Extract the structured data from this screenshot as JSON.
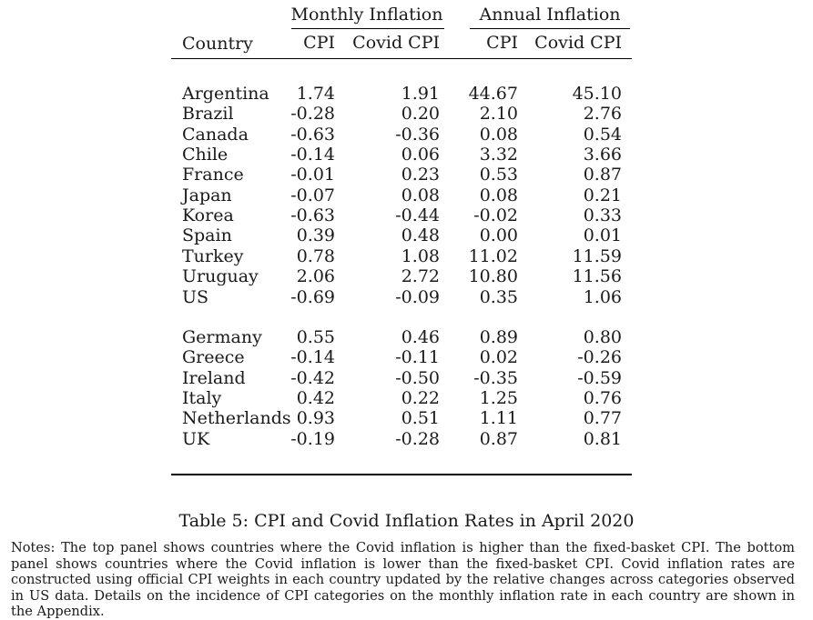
{
  "table": {
    "group_headers": {
      "monthly": "Monthly Inflation",
      "annual": "Annual Inflation"
    },
    "column_headers": [
      "Country",
      "CPI",
      "Covid CPI",
      "CPI",
      "Covid CPI"
    ],
    "panels": [
      {
        "rows": [
          {
            "country": "Argentina",
            "m_cpi": "1.74",
            "m_covid": "1.91",
            "a_cpi": "44.67",
            "a_covid": "45.10"
          },
          {
            "country": "Brazil",
            "m_cpi": "-0.28",
            "m_covid": "0.20",
            "a_cpi": "2.10",
            "a_covid": "2.76"
          },
          {
            "country": "Canada",
            "m_cpi": "-0.63",
            "m_covid": "-0.36",
            "a_cpi": "0.08",
            "a_covid": "0.54"
          },
          {
            "country": "Chile",
            "m_cpi": "-0.14",
            "m_covid": "0.06",
            "a_cpi": "3.32",
            "a_covid": "3.66"
          },
          {
            "country": "France",
            "m_cpi": "-0.01",
            "m_covid": "0.23",
            "a_cpi": "0.53",
            "a_covid": "0.87"
          },
          {
            "country": "Japan",
            "m_cpi": "-0.07",
            "m_covid": "0.08",
            "a_cpi": "0.08",
            "a_covid": "0.21"
          },
          {
            "country": "Korea",
            "m_cpi": "-0.63",
            "m_covid": "-0.44",
            "a_cpi": "-0.02",
            "a_covid": "0.33"
          },
          {
            "country": "Spain",
            "m_cpi": "0.39",
            "m_covid": "0.48",
            "a_cpi": "0.00",
            "a_covid": "0.01"
          },
          {
            "country": "Turkey",
            "m_cpi": "0.78",
            "m_covid": "1.08",
            "a_cpi": "11.02",
            "a_covid": "11.59"
          },
          {
            "country": "Uruguay",
            "m_cpi": "2.06",
            "m_covid": "2.72",
            "a_cpi": "10.80",
            "a_covid": "11.56"
          },
          {
            "country": "US",
            "m_cpi": "-0.69",
            "m_covid": "-0.09",
            "a_cpi": "0.35",
            "a_covid": "1.06"
          }
        ]
      },
      {
        "rows": [
          {
            "country": "Germany",
            "m_cpi": "0.55",
            "m_covid": "0.46",
            "a_cpi": "0.89",
            "a_covid": "0.80"
          },
          {
            "country": "Greece",
            "m_cpi": "-0.14",
            "m_covid": "-0.11",
            "a_cpi": "0.02",
            "a_covid": "-0.26"
          },
          {
            "country": "Ireland",
            "m_cpi": "-0.42",
            "m_covid": "-0.50",
            "a_cpi": "-0.35",
            "a_covid": "-0.59"
          },
          {
            "country": "Italy",
            "m_cpi": "0.42",
            "m_covid": "0.22",
            "a_cpi": "1.25",
            "a_covid": "0.76"
          },
          {
            "country": "Netherlands",
            "m_cpi": "0.93",
            "m_covid": "0.51",
            "a_cpi": "1.11",
            "a_covid": "0.77"
          },
          {
            "country": "UK",
            "m_cpi": "-0.19",
            "m_covid": "-0.28",
            "a_cpi": "0.87",
            "a_covid": "0.81"
          }
        ]
      }
    ]
  },
  "caption": "Table 5: CPI and Covid Inflation Rates in April 2020",
  "notes": "Notes: The top panel shows countries where the Covid inflation is higher than the fixed-basket CPI. The bottom panel shows countries where the Covid inflation is lower than the fixed-basket CPI. Covid inflation rates are constructed using official CPI weights in each country updated by the relative changes across categories observed in US data. Details on the incidence of CPI categories on the monthly inflation rate in each country are shown in the Appendix."
}
